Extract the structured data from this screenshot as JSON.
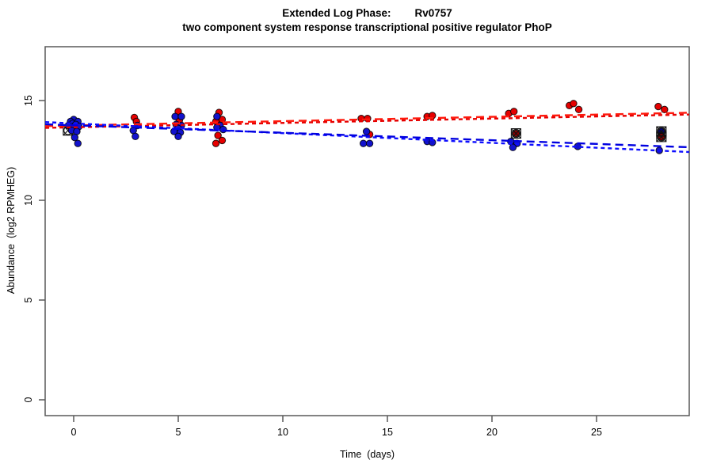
{
  "chart_data": {
    "type": "scatter",
    "title": "Extended Log Phase:        Rv0757",
    "subtitle": "two component system response transcriptional positive regulator PhoP",
    "xlabel": "Time  (days)",
    "ylabel": "Abundance  (log2 RPMHEG)",
    "x_ticks": [
      0,
      5,
      10,
      15,
      20,
      25
    ],
    "y_ticks": [
      0,
      5,
      10,
      15
    ],
    "xlim": [
      -1.4,
      29.4
    ],
    "ylim": [
      -0.8,
      17.7
    ],
    "grid": false,
    "legend": "none",
    "axis_color": "#595959",
    "series": [
      {
        "name": "red-condition",
        "color": "#e60000",
        "points": [
          [
            0.05,
            13.75
          ],
          [
            -0.1,
            13.7
          ],
          [
            2.9,
            14.15
          ],
          [
            3.0,
            13.95
          ],
          [
            5.0,
            14.45
          ],
          [
            5.05,
            14.0
          ],
          [
            6.95,
            14.4
          ],
          [
            7.1,
            14.05
          ],
          [
            6.8,
            13.95
          ],
          [
            6.9,
            13.25
          ],
          [
            7.1,
            13.0
          ],
          [
            6.8,
            12.85
          ],
          [
            13.75,
            14.1
          ],
          [
            14.05,
            14.1
          ],
          [
            14.15,
            13.3
          ],
          [
            16.9,
            14.2
          ],
          [
            17.15,
            14.25
          ],
          [
            20.8,
            14.35
          ],
          [
            21.05,
            14.45
          ],
          [
            23.7,
            14.75
          ],
          [
            23.9,
            14.85
          ],
          [
            24.15,
            14.55
          ],
          [
            27.95,
            14.7
          ],
          [
            28.25,
            14.55
          ]
        ]
      },
      {
        "name": "blue-condition",
        "color": "#1212cc",
        "points": [
          [
            0.0,
            14.05
          ],
          [
            -0.15,
            13.95
          ],
          [
            0.2,
            13.95
          ],
          [
            -0.05,
            13.85
          ],
          [
            0.1,
            13.8
          ],
          [
            -0.25,
            13.75
          ],
          [
            0.25,
            13.7
          ],
          [
            0.0,
            13.6
          ],
          [
            -0.1,
            13.5
          ],
          [
            0.15,
            13.45
          ],
          [
            0.05,
            13.15
          ],
          [
            0.2,
            12.85
          ],
          [
            3.05,
            13.75
          ],
          [
            2.85,
            13.5
          ],
          [
            2.95,
            13.2
          ],
          [
            4.85,
            14.2
          ],
          [
            5.15,
            14.2
          ],
          [
            4.9,
            13.8
          ],
          [
            5.15,
            13.75
          ],
          [
            5.0,
            13.6
          ],
          [
            4.8,
            13.45
          ],
          [
            5.1,
            13.4
          ],
          [
            5.0,
            13.2
          ],
          [
            6.85,
            14.2
          ],
          [
            7.0,
            13.75
          ],
          [
            6.85,
            13.65
          ],
          [
            7.15,
            13.55
          ],
          [
            14.0,
            13.45
          ],
          [
            13.85,
            12.85
          ],
          [
            14.15,
            12.85
          ],
          [
            16.9,
            12.95
          ],
          [
            17.15,
            12.9
          ],
          [
            20.9,
            12.95
          ],
          [
            21.2,
            12.85
          ],
          [
            21.0,
            12.65
          ],
          [
            24.1,
            12.7
          ],
          [
            28.0,
            12.5
          ]
        ]
      }
    ],
    "flagged_points": [
      {
        "day": -0.27,
        "value": 13.5,
        "fill": "none",
        "under": true
      },
      {
        "day": 21.15,
        "value": 13.35,
        "fill": "#8B0000",
        "under": false
      },
      {
        "day": 28.1,
        "value": 13.45,
        "fill": "#000080",
        "under": false
      },
      {
        "day": 28.1,
        "value": 13.18,
        "fill": "#8B0000",
        "under": false
      }
    ],
    "flag_marker": "square-cross-circle",
    "trend_lines": [
      {
        "name": "red-fit-a",
        "color": "#ff1a0d",
        "x": [
          -1.36,
          29.43
        ],
        "y": [
          13.72,
          14.39
        ],
        "dash": "long"
      },
      {
        "name": "red-fit-b",
        "color": "#e60000",
        "x": [
          -1.36,
          29.43
        ],
        "y": [
          13.63,
          14.3
        ],
        "dash": "short"
      },
      {
        "name": "blue-fit-a",
        "color": "#0d0dff",
        "x": [
          -1.36,
          29.43
        ],
        "y": [
          13.92,
          12.42
        ],
        "dash": "short"
      },
      {
        "name": "blue-fit-b",
        "color": "#0000e0",
        "x": [
          -1.36,
          29.43
        ],
        "y": [
          13.81,
          12.66
        ],
        "dash": "long"
      }
    ]
  }
}
